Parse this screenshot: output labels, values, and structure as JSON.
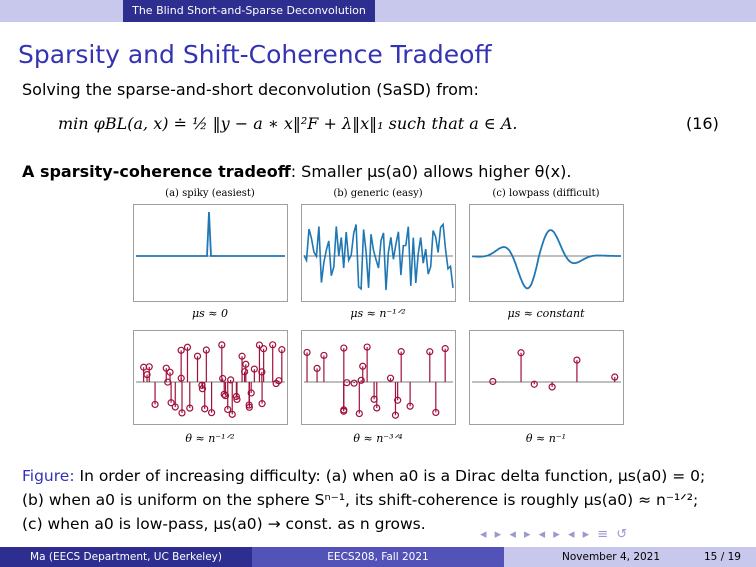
{
  "header": {
    "section": "The Blind Short-and-Sparse Deconvolution"
  },
  "slide": {
    "title": "Sparsity and Shift-Coherence Tradeoff",
    "intro": "Solving the sparse-and-short deconvolution (SaSD) from:",
    "equation": "min φBL(a, x) ≐ ½ ‖y − a ∗ x‖²F + λ‖x‖₁   such that   a ∈ A.",
    "equation_number": "(16)",
    "tradeoff_bold": "A sparsity-coherence tradeoff",
    "tradeoff_rest": ": Smaller μs(a0) allows higher θ(x)."
  },
  "figure": {
    "panels": [
      {
        "label": "(a) spiky (easiest)",
        "mu": "μs ≈ 0",
        "theta": "θ ≈ n⁻¹ᐟ²"
      },
      {
        "label": "(b) generic (easy)",
        "mu": "μs ≈ n⁻¹ᐟ²",
        "theta": "θ ≈ n⁻³ᐟ⁴"
      },
      {
        "label": "(c) lowpass (difficult)",
        "mu": "μs ≈ constant",
        "theta": "θ ≈ n⁻¹"
      }
    ],
    "colors": {
      "signal": "#1f77b4",
      "stem": "#a0103a"
    }
  },
  "caption": {
    "label": "Figure:",
    "text": "In order of increasing difficulty: (a) when a0 is a Dirac delta function, μs(a0) = 0; (b) when a0 is uniform on the sphere Sⁿ⁻¹, its shift-coherence is roughly μs(a0) ≈ n⁻¹ᐟ²; (c) when a0 is low-pass, μs(a0) → const. as n grows."
  },
  "footer": {
    "author": "Ma  (EECS Department, UC Berkeley)",
    "course": "EECS208, Fall 2021",
    "date": "November 4, 2021",
    "page": "15 / 19"
  }
}
